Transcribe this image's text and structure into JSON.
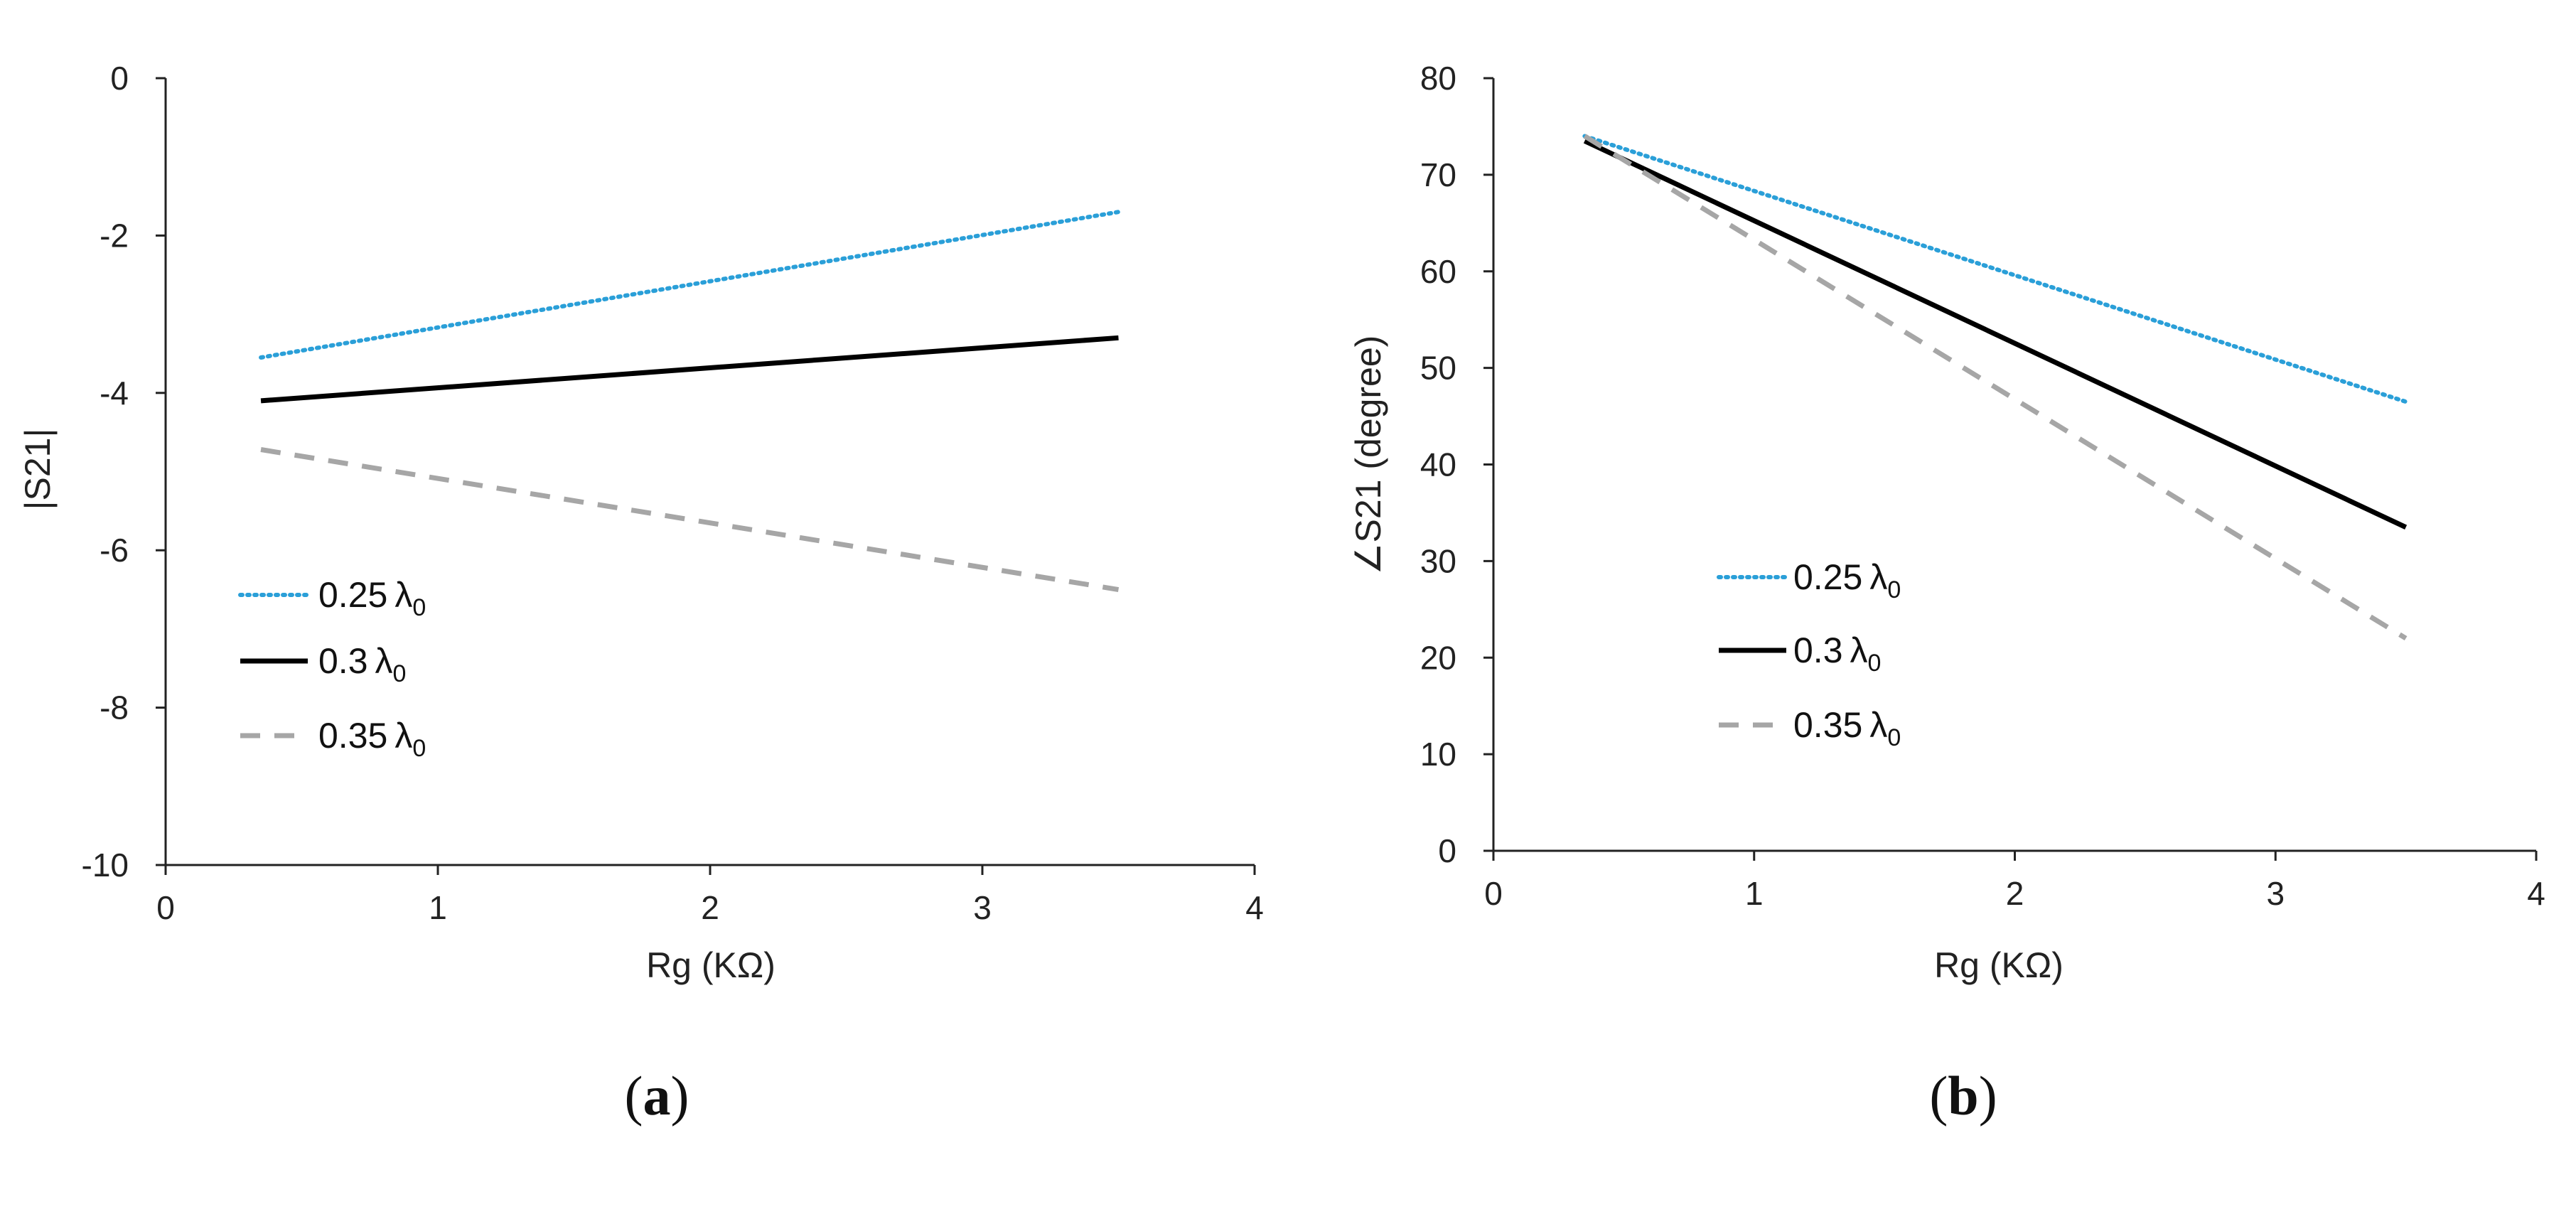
{
  "chart_data": [
    {
      "type": "line",
      "panel": "a",
      "caption_prefix": "(",
      "caption_letter": "a",
      "caption_suffix": ")",
      "xlabel": "Rg (KΩ)",
      "ylabel": "|S21|",
      "xlim": [
        0,
        4
      ],
      "ylim": [
        -10,
        0
      ],
      "xticks": [
        0,
        1,
        2,
        3,
        4
      ],
      "yticks": [
        -10,
        -8,
        -6,
        -4,
        -2,
        0
      ],
      "grid": false,
      "legend_position": "bottom-left",
      "series": [
        {
          "name": "0.25",
          "lambda": "λ",
          "sub": "0",
          "style": "dotted",
          "color": "#2a9fd8",
          "x": [
            0.35,
            3.5
          ],
          "y": [
            -3.55,
            -1.7
          ]
        },
        {
          "name": "0.3",
          "lambda": "λ",
          "sub": "0",
          "style": "solid",
          "color": "#000000",
          "x": [
            0.35,
            3.5
          ],
          "y": [
            -4.1,
            -3.3
          ]
        },
        {
          "name": "0.35",
          "lambda": "λ",
          "sub": "0",
          "style": "dashed",
          "color": "#a6a6a6",
          "x": [
            0.35,
            3.5
          ],
          "y": [
            -4.72,
            -6.5
          ]
        }
      ]
    },
    {
      "type": "line",
      "panel": "b",
      "caption_prefix": "(",
      "caption_letter": "b",
      "caption_suffix": ")",
      "xlabel": "Rg (KΩ)",
      "ylabel": "∠S21  (degree)",
      "xlim": [
        0,
        4
      ],
      "ylim": [
        0,
        80
      ],
      "xticks": [
        0,
        1,
        2,
        3,
        4
      ],
      "yticks": [
        0,
        10,
        20,
        30,
        40,
        50,
        60,
        70,
        80
      ],
      "grid": false,
      "legend_position": "bottom-left",
      "series": [
        {
          "name": "0.25",
          "lambda": "λ",
          "sub": "0",
          "style": "dotted",
          "color": "#2a9fd8",
          "x": [
            0.35,
            3.5
          ],
          "y": [
            74,
            46.5
          ]
        },
        {
          "name": "0.3",
          "lambda": "λ",
          "sub": "0",
          "style": "solid",
          "color": "#000000",
          "x": [
            0.35,
            3.5
          ],
          "y": [
            73.5,
            33.5
          ]
        },
        {
          "name": "0.35",
          "lambda": "λ",
          "sub": "0",
          "style": "dashed",
          "color": "#a6a6a6",
          "x": [
            0.35,
            3.5
          ],
          "y": [
            74,
            22
          ]
        }
      ]
    }
  ]
}
